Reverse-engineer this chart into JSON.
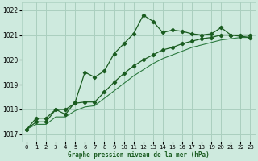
{
  "title": "Graphe pression niveau de la mer (hPa)",
  "bg_color": "#ceeade",
  "grid_color": "#aacfbf",
  "line_color_dark": "#1a5c20",
  "line_color_light": "#2d7a40",
  "xlim": [
    -0.5,
    23.5
  ],
  "ylim": [
    1016.7,
    1022.3
  ],
  "yticks": [
    1017,
    1018,
    1019,
    1020,
    1021,
    1022
  ],
  "xticks": [
    0,
    1,
    2,
    3,
    4,
    5,
    6,
    7,
    8,
    9,
    10,
    11,
    12,
    13,
    14,
    15,
    16,
    17,
    18,
    19,
    20,
    21,
    22,
    23
  ],
  "series_wavy_x": [
    0,
    1,
    2,
    3,
    4,
    5,
    6,
    7,
    8,
    9,
    10,
    11,
    12,
    13,
    14,
    15,
    16,
    17,
    18,
    19,
    20,
    21,
    22,
    23
  ],
  "series_wavy_y": [
    1017.2,
    1017.65,
    1017.65,
    1018.0,
    1017.8,
    1018.3,
    1019.5,
    1019.3,
    1019.55,
    1020.25,
    1020.65,
    1021.05,
    1021.8,
    1021.55,
    1021.1,
    1021.2,
    1021.15,
    1021.05,
    1021.0,
    1021.05,
    1021.3,
    1021.0,
    1020.95,
    1020.9
  ],
  "series_mid_x": [
    0,
    1,
    2,
    3,
    4,
    5,
    6,
    7,
    8,
    9,
    10,
    11,
    12,
    13,
    14,
    15,
    16,
    17,
    18,
    19,
    20,
    21,
    22,
    23
  ],
  "series_mid_y": [
    1017.2,
    1017.5,
    1017.5,
    1018.0,
    1018.0,
    1018.25,
    1018.3,
    1018.3,
    1018.7,
    1019.1,
    1019.45,
    1019.75,
    1020.0,
    1020.2,
    1020.4,
    1020.5,
    1020.65,
    1020.75,
    1020.85,
    1020.9,
    1021.0,
    1021.0,
    1021.0,
    1021.0
  ],
  "series_low_x": [
    0,
    1,
    2,
    3,
    4,
    5,
    6,
    7,
    8,
    9,
    10,
    11,
    12,
    13,
    14,
    15,
    16,
    17,
    18,
    19,
    20,
    21,
    22,
    23
  ],
  "series_low_y": [
    1017.2,
    1017.4,
    1017.4,
    1017.7,
    1017.7,
    1017.95,
    1018.1,
    1018.15,
    1018.45,
    1018.75,
    1019.05,
    1019.35,
    1019.6,
    1019.85,
    1020.05,
    1020.2,
    1020.35,
    1020.5,
    1020.6,
    1020.7,
    1020.8,
    1020.85,
    1020.9,
    1020.9
  ]
}
